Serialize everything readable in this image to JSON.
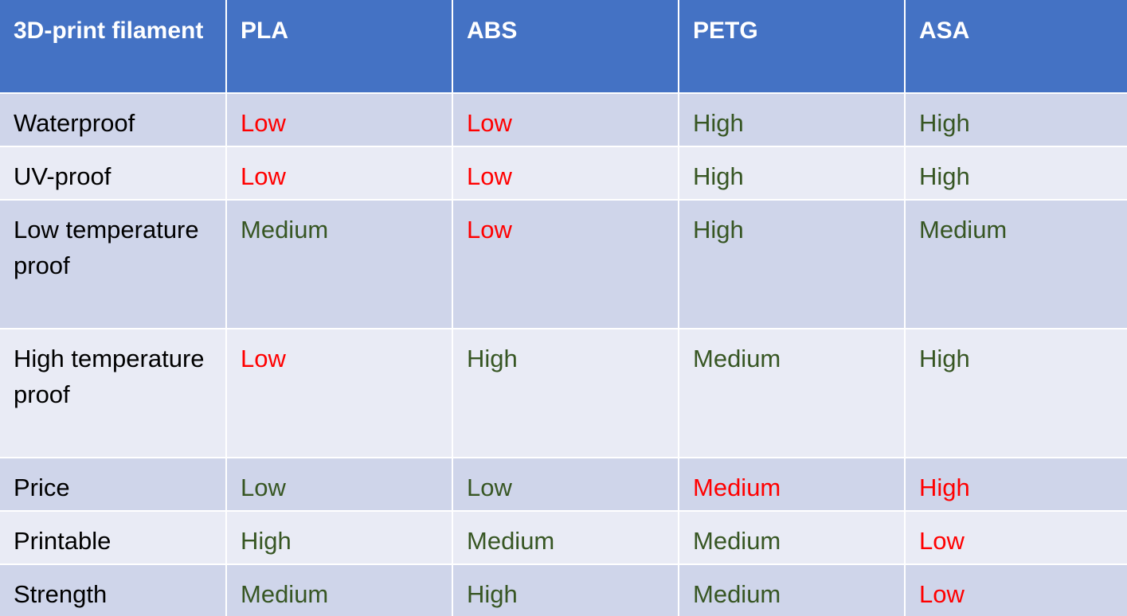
{
  "table": {
    "header": [
      "3D-print filament",
      "PLA",
      "ABS",
      "PETG",
      "ASA"
    ],
    "rows": [
      {
        "label": "Waterproof",
        "values": [
          "Low",
          "Low",
          "High",
          "High"
        ]
      },
      {
        "label": "UV-proof",
        "values": [
          "Low",
          "Low",
          "High",
          "High"
        ]
      },
      {
        "label": "Low temperature proof",
        "values": [
          "Medium",
          "Low",
          "High",
          "Medium"
        ]
      },
      {
        "label": "High temperature proof",
        "values": [
          "Low",
          "High",
          "Medium",
          "High"
        ]
      },
      {
        "label": "Price",
        "values": [
          "Low",
          "Low",
          "Medium",
          "High"
        ]
      },
      {
        "label": "Printable",
        "values": [
          "High",
          "Medium",
          "Medium",
          "Low"
        ]
      },
      {
        "label": "Strength",
        "values": [
          "Medium",
          "High",
          "Medium",
          "Low"
        ]
      }
    ]
  },
  "colors": {
    "header_bg": "#4472c4",
    "row_dark_bg": "#cfd5ea",
    "row_light_bg": "#e9ebf5",
    "bad_value": "#ff0000",
    "good_value": "#375623"
  }
}
